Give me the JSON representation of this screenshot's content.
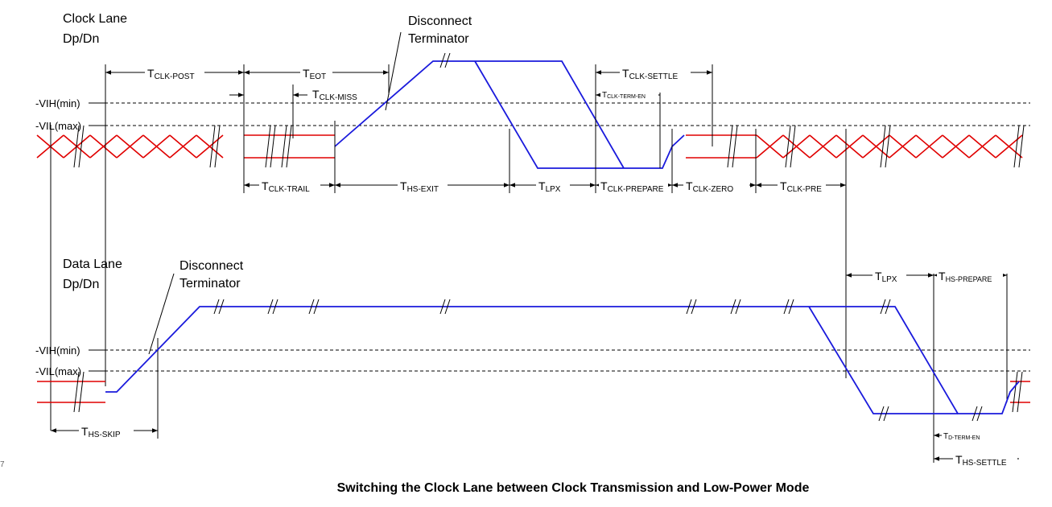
{
  "clock_lane": {
    "label_line1": "Clock Lane",
    "label_line2": "Dp/Dn",
    "disconnect_line1": "Disconnect",
    "disconnect_line2": "Terminator"
  },
  "data_lane": {
    "label_line1": "Data Lane",
    "label_line2": "Dp/Dn",
    "disconnect_line1": "Disconnect",
    "disconnect_line2": "Terminator"
  },
  "levels": {
    "vih": "VIH(min)",
    "vil": "VIL(max)"
  },
  "timings": {
    "clk_post": {
      "t": "T",
      "sub": "CLK-POST"
    },
    "eot": {
      "t": "T",
      "sub": "EOT"
    },
    "clk_miss": {
      "t": "T",
      "sub": "CLK-MISS"
    },
    "clk_settle": {
      "t": "T",
      "sub": "CLK-SETTLE"
    },
    "clk_term_en": {
      "t": "T",
      "sub": "CLK-TERM-EN"
    },
    "clk_trail": {
      "t": "T",
      "sub": "CLK-TRAIL"
    },
    "hs_exit": {
      "t": "T",
      "sub": "HS-EXIT"
    },
    "lpx_clk": {
      "t": "T",
      "sub": "LPX"
    },
    "clk_prepare": {
      "t": "T",
      "sub": "CLK-PREPARE"
    },
    "clk_zero": {
      "t": "T",
      "sub": "CLK-ZERO"
    },
    "clk_pre": {
      "t": "T",
      "sub": "CLK-PRE"
    },
    "lpx_data": {
      "t": "T",
      "sub": "LPX"
    },
    "hs_prepare": {
      "t": "T",
      "sub": "HS-PREPARE"
    },
    "hs_skip": {
      "t": "T",
      "sub": "HS-SKIP"
    },
    "d_term_en": {
      "t": "T",
      "sub": "D-TERM-EN"
    },
    "hs_settle": {
      "t": "T",
      "sub": "HS-SETTLE"
    }
  },
  "page_number": "7",
  "caption": "Switching the Clock Lane between Clock Transmission and Low-Power Mode"
}
